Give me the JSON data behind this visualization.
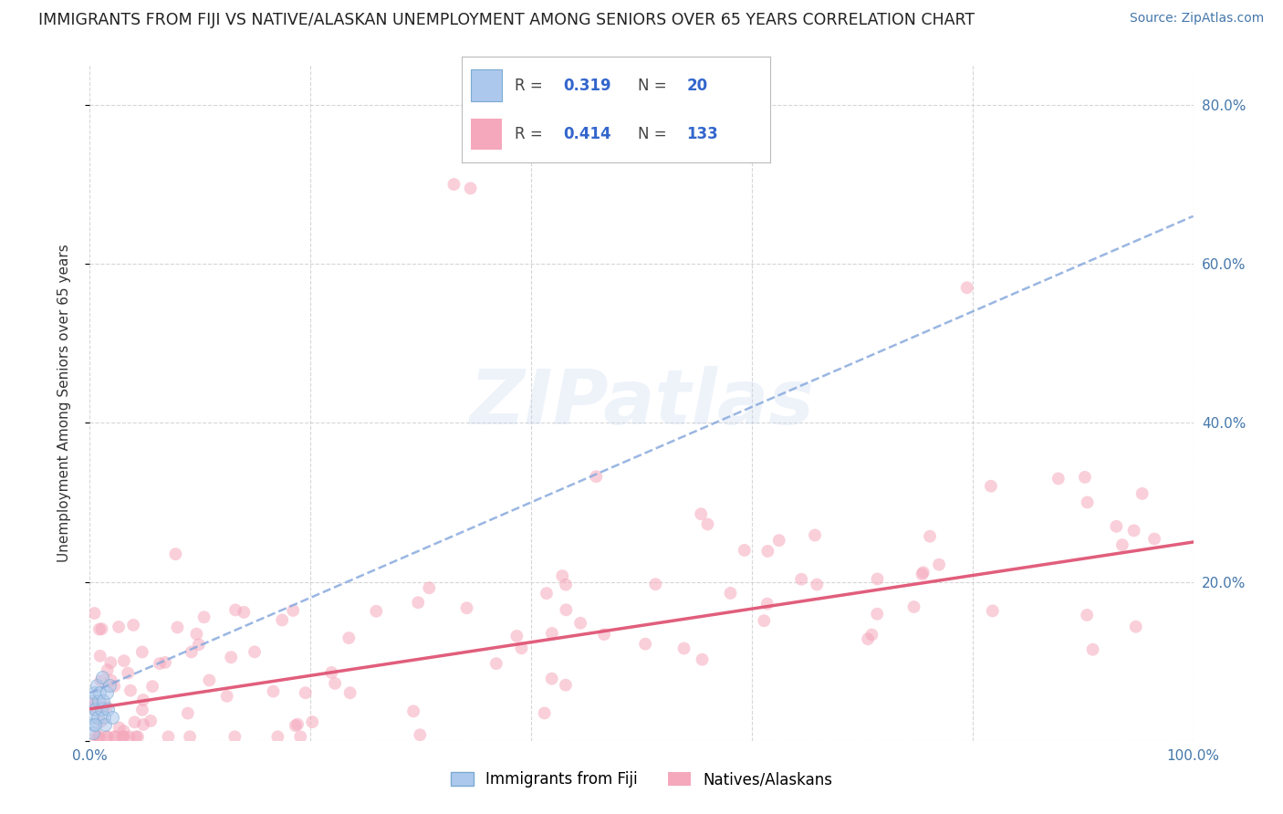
{
  "title": "IMMIGRANTS FROM FIJI VS NATIVE/ALASKAN UNEMPLOYMENT AMONG SENIORS OVER 65 YEARS CORRELATION CHART",
  "source": "Source: ZipAtlas.com",
  "ylabel": "Unemployment Among Seniors over 65 years",
  "xlim": [
    0,
    1.0
  ],
  "ylim": [
    0,
    0.85
  ],
  "xticks": [
    0.0,
    0.2,
    0.4,
    0.6,
    0.8,
    1.0
  ],
  "xtick_labels": [
    "0.0%",
    "",
    "",
    "",
    "",
    "100.0%"
  ],
  "ytick_labels": [
    "",
    "20.0%",
    "40.0%",
    "60.0%",
    "80.0%"
  ],
  "ytick_positions": [
    0.0,
    0.2,
    0.4,
    0.6,
    0.8
  ],
  "fiji_color": "#adc8ed",
  "fiji_edge_color": "#7aaad0",
  "native_color": "#f5a8bc",
  "native_edge_color": "#f5a8bc",
  "fiji_trend_color": "#88aadd",
  "native_trend_color": "#e05575",
  "fiji_R": 0.319,
  "fiji_N": 20,
  "native_R": 0.414,
  "native_N": 133,
  "background_color": "#ffffff",
  "grid_color": "#cccccc",
  "watermark_text": "ZIPatlas",
  "legend_fiji_label": "Immigrants from Fiji",
  "legend_native_label": "Natives/Alaskans",
  "marker_size": 100,
  "marker_alpha": 0.55
}
